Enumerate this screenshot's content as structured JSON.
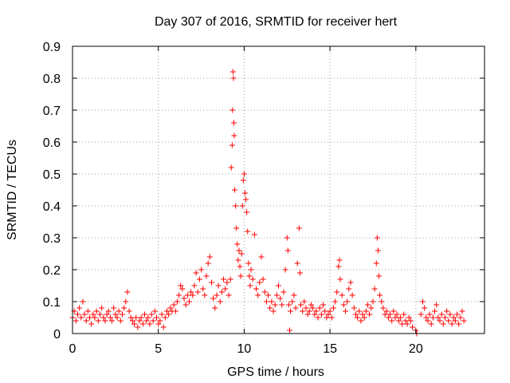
{
  "chart_data": {
    "type": "scatter",
    "title": "Day 307 of 2016, SRMTID for receiver hert",
    "xlabel": "GPS time / hours",
    "ylabel": "SRMTID / TECUs",
    "xlim": [
      0,
      24
    ],
    "ylim": [
      0,
      0.9
    ],
    "xticks": [
      0,
      5,
      10,
      15,
      20
    ],
    "xtick_labels": [
      "0",
      "5",
      "10",
      "15",
      "20"
    ],
    "yticks": [
      0,
      0.1,
      0.2,
      0.3,
      0.4,
      0.5,
      0.6,
      0.7,
      0.8,
      0.9
    ],
    "ytick_labels": [
      "0",
      "0.1",
      "0.2",
      "0.3",
      "0.4",
      "0.5",
      "0.6",
      "0.7",
      "0.8",
      "0.9"
    ],
    "grid": true,
    "marker": "+",
    "color": "#ff0000",
    "series": [
      {
        "name": "SRMTID",
        "points": [
          [
            0.0,
            0.05
          ],
          [
            0.1,
            0.07
          ],
          [
            0.2,
            0.04
          ],
          [
            0.3,
            0.06
          ],
          [
            0.4,
            0.08
          ],
          [
            0.5,
            0.05
          ],
          [
            0.6,
            0.1
          ],
          [
            0.7,
            0.06
          ],
          [
            0.8,
            0.04
          ],
          [
            0.9,
            0.07
          ],
          [
            1.0,
            0.05
          ],
          [
            1.1,
            0.03
          ],
          [
            1.2,
            0.06
          ],
          [
            1.3,
            0.05
          ],
          [
            1.4,
            0.07
          ],
          [
            1.5,
            0.04
          ],
          [
            1.6,
            0.06
          ],
          [
            1.7,
            0.08
          ],
          [
            1.8,
            0.05
          ],
          [
            1.9,
            0.04
          ],
          [
            2.0,
            0.06
          ],
          [
            2.1,
            0.07
          ],
          [
            2.2,
            0.05
          ],
          [
            2.3,
            0.04
          ],
          [
            2.4,
            0.08
          ],
          [
            2.5,
            0.06
          ],
          [
            2.6,
            0.05
          ],
          [
            2.7,
            0.07
          ],
          [
            2.8,
            0.04
          ],
          [
            2.9,
            0.06
          ],
          [
            3.0,
            0.08
          ],
          [
            3.1,
            0.1
          ],
          [
            3.2,
            0.13
          ],
          [
            3.3,
            0.07
          ],
          [
            3.4,
            0.05
          ],
          [
            3.5,
            0.04
          ],
          [
            3.6,
            0.03
          ],
          [
            3.7,
            0.05
          ],
          [
            3.8,
            0.02
          ],
          [
            3.9,
            0.04
          ],
          [
            4.0,
            0.05
          ],
          [
            4.1,
            0.03
          ],
          [
            4.2,
            0.06
          ],
          [
            4.3,
            0.04
          ],
          [
            4.4,
            0.05
          ],
          [
            4.5,
            0.03
          ],
          [
            4.6,
            0.06
          ],
          [
            4.7,
            0.04
          ],
          [
            4.8,
            0.07
          ],
          [
            4.9,
            0.05
          ],
          [
            5.0,
            0.03
          ],
          [
            5.1,
            0.04
          ],
          [
            5.2,
            0.06
          ],
          [
            5.3,
            0.02
          ],
          [
            5.4,
            0.05
          ],
          [
            5.5,
            0.07
          ],
          [
            5.6,
            0.06
          ],
          [
            5.7,
            0.08
          ],
          [
            5.8,
            0.07
          ],
          [
            5.9,
            0.09
          ],
          [
            6.0,
            0.07
          ],
          [
            6.1,
            0.1
          ],
          [
            6.2,
            0.12
          ],
          [
            6.3,
            0.15
          ],
          [
            6.4,
            0.14
          ],
          [
            6.5,
            0.11
          ],
          [
            6.6,
            0.09
          ],
          [
            6.7,
            0.12
          ],
          [
            6.8,
            0.1
          ],
          [
            6.9,
            0.13
          ],
          [
            7.0,
            0.12
          ],
          [
            7.1,
            0.15
          ],
          [
            7.2,
            0.19
          ],
          [
            7.3,
            0.13
          ],
          [
            7.4,
            0.17
          ],
          [
            7.5,
            0.2
          ],
          [
            7.6,
            0.14
          ],
          [
            7.7,
            0.12
          ],
          [
            7.8,
            0.18
          ],
          [
            7.9,
            0.22
          ],
          [
            8.0,
            0.24
          ],
          [
            8.1,
            0.16
          ],
          [
            8.2,
            0.11
          ],
          [
            8.3,
            0.08
          ],
          [
            8.4,
            0.12
          ],
          [
            8.5,
            0.15
          ],
          [
            8.6,
            0.1
          ],
          [
            8.7,
            0.13
          ],
          [
            8.8,
            0.17
          ],
          [
            8.9,
            0.14
          ],
          [
            9.0,
            0.16
          ],
          [
            9.1,
            0.12
          ],
          [
            9.2,
            0.17
          ],
          [
            9.25,
            0.52
          ],
          [
            9.3,
            0.59
          ],
          [
            9.32,
            0.7
          ],
          [
            9.35,
            0.82
          ],
          [
            9.38,
            0.8
          ],
          [
            9.4,
            0.66
          ],
          [
            9.42,
            0.62
          ],
          [
            9.45,
            0.45
          ],
          [
            9.5,
            0.4
          ],
          [
            9.55,
            0.33
          ],
          [
            9.6,
            0.28
          ],
          [
            9.65,
            0.23
          ],
          [
            9.7,
            0.26
          ],
          [
            9.75,
            0.21
          ],
          [
            9.8,
            0.18
          ],
          [
            9.85,
            0.25
          ],
          [
            9.9,
            0.4
          ],
          [
            9.95,
            0.48
          ],
          [
            10.0,
            0.5
          ],
          [
            10.05,
            0.44
          ],
          [
            10.1,
            0.42
          ],
          [
            10.15,
            0.38
          ],
          [
            10.2,
            0.32
          ],
          [
            10.25,
            0.22
          ],
          [
            10.3,
            0.18
          ],
          [
            10.35,
            0.15
          ],
          [
            10.4,
            0.2
          ],
          [
            10.5,
            0.17
          ],
          [
            10.6,
            0.31
          ],
          [
            10.7,
            0.14
          ],
          [
            10.8,
            0.12
          ],
          [
            10.9,
            0.16
          ],
          [
            11.0,
            0.24
          ],
          [
            11.1,
            0.17
          ],
          [
            11.2,
            0.13
          ],
          [
            11.3,
            0.1
          ],
          [
            11.4,
            0.12
          ],
          [
            11.5,
            0.08
          ],
          [
            11.6,
            0.1
          ],
          [
            11.7,
            0.07
          ],
          [
            11.8,
            0.09
          ],
          [
            11.9,
            0.12
          ],
          [
            12.0,
            0.15
          ],
          [
            12.1,
            0.11
          ],
          [
            12.2,
            0.09
          ],
          [
            12.3,
            0.13
          ],
          [
            12.4,
            0.2
          ],
          [
            12.5,
            0.3
          ],
          [
            12.55,
            0.26
          ],
          [
            12.6,
            0.09
          ],
          [
            12.65,
            0.01
          ],
          [
            12.7,
            0.07
          ],
          [
            12.8,
            0.1
          ],
          [
            12.9,
            0.12
          ],
          [
            13.0,
            0.08
          ],
          [
            13.1,
            0.22
          ],
          [
            13.2,
            0.33
          ],
          [
            13.25,
            0.19
          ],
          [
            13.3,
            0.09
          ],
          [
            13.4,
            0.07
          ],
          [
            13.5,
            0.1
          ],
          [
            13.6,
            0.08
          ],
          [
            13.7,
            0.06
          ],
          [
            13.8,
            0.07
          ],
          [
            13.9,
            0.09
          ],
          [
            14.0,
            0.08
          ],
          [
            14.1,
            0.06
          ],
          [
            14.2,
            0.07
          ],
          [
            14.3,
            0.05
          ],
          [
            14.4,
            0.08
          ],
          [
            14.5,
            0.06
          ],
          [
            14.6,
            0.09
          ],
          [
            14.7,
            0.07
          ],
          [
            14.8,
            0.05
          ],
          [
            14.9,
            0.06
          ],
          [
            15.0,
            0.07
          ],
          [
            15.1,
            0.05
          ],
          [
            15.2,
            0.08
          ],
          [
            15.3,
            0.1
          ],
          [
            15.4,
            0.13
          ],
          [
            15.5,
            0.21
          ],
          [
            15.55,
            0.23
          ],
          [
            15.6,
            0.17
          ],
          [
            15.7,
            0.12
          ],
          [
            15.8,
            0.09
          ],
          [
            15.9,
            0.07
          ],
          [
            16.0,
            0.1
          ],
          [
            16.1,
            0.14
          ],
          [
            16.2,
            0.16
          ],
          [
            16.3,
            0.12
          ],
          [
            16.4,
            0.08
          ],
          [
            16.5,
            0.06
          ],
          [
            16.6,
            0.05
          ],
          [
            16.7,
            0.07
          ],
          [
            16.8,
            0.04
          ],
          [
            16.9,
            0.06
          ],
          [
            17.0,
            0.05
          ],
          [
            17.1,
            0.07
          ],
          [
            17.2,
            0.09
          ],
          [
            17.3,
            0.06
          ],
          [
            17.4,
            0.08
          ],
          [
            17.5,
            0.1
          ],
          [
            17.6,
            0.14
          ],
          [
            17.7,
            0.22
          ],
          [
            17.75,
            0.3
          ],
          [
            17.8,
            0.26
          ],
          [
            17.85,
            0.18
          ],
          [
            17.9,
            0.12
          ],
          [
            18.0,
            0.1
          ],
          [
            18.1,
            0.08
          ],
          [
            18.2,
            0.06
          ],
          [
            18.3,
            0.07
          ],
          [
            18.4,
            0.05
          ],
          [
            18.5,
            0.06
          ],
          [
            18.6,
            0.04
          ],
          [
            18.7,
            0.07
          ],
          [
            18.8,
            0.05
          ],
          [
            18.9,
            0.06
          ],
          [
            19.0,
            0.04
          ],
          [
            19.1,
            0.05
          ],
          [
            19.2,
            0.03
          ],
          [
            19.3,
            0.06
          ],
          [
            19.4,
            0.04
          ],
          [
            19.5,
            0.03
          ],
          [
            19.6,
            0.05
          ],
          [
            19.7,
            0.04
          ],
          [
            19.8,
            0.02
          ],
          [
            20.0,
            0.01
          ],
          [
            20.05,
            0.0
          ],
          [
            20.3,
            0.06
          ],
          [
            20.4,
            0.1
          ],
          [
            20.5,
            0.08
          ],
          [
            20.6,
            0.05
          ],
          [
            20.7,
            0.04
          ],
          [
            20.8,
            0.06
          ],
          [
            20.9,
            0.03
          ],
          [
            21.0,
            0.05
          ],
          [
            21.1,
            0.07
          ],
          [
            21.2,
            0.09
          ],
          [
            21.3,
            0.05
          ],
          [
            21.4,
            0.04
          ],
          [
            21.5,
            0.06
          ],
          [
            21.6,
            0.03
          ],
          [
            21.7,
            0.05
          ],
          [
            21.8,
            0.07
          ],
          [
            21.9,
            0.04
          ],
          [
            22.0,
            0.06
          ],
          [
            22.1,
            0.03
          ],
          [
            22.2,
            0.05
          ],
          [
            22.3,
            0.04
          ],
          [
            22.4,
            0.06
          ],
          [
            22.5,
            0.03
          ],
          [
            22.6,
            0.05
          ],
          [
            22.7,
            0.07
          ],
          [
            22.8,
            0.04
          ]
        ]
      }
    ]
  }
}
